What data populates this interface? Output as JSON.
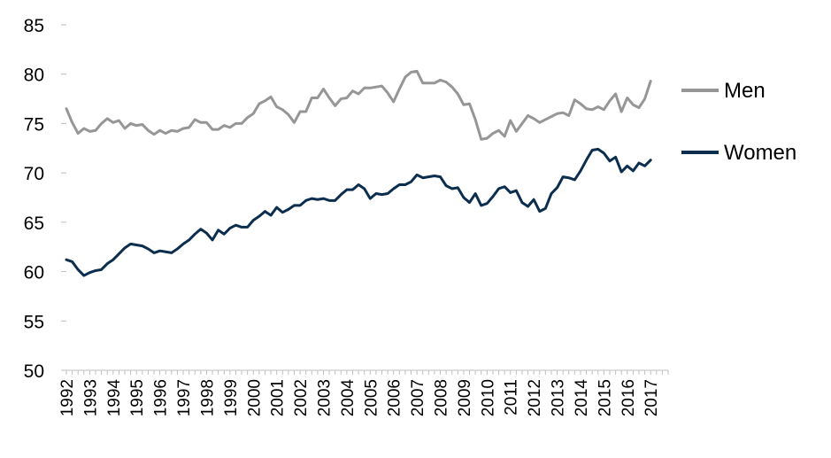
{
  "chart_data": {
    "type": "line",
    "title": "",
    "xlabel": "",
    "ylabel": "",
    "ylim": [
      50,
      85
    ],
    "yticks": [
      50,
      55,
      60,
      65,
      70,
      75,
      80,
      85
    ],
    "xlim": [
      1992.0,
      2017.75
    ],
    "xticks": [
      "1992",
      "1993",
      "1994",
      "1995",
      "1996",
      "1997",
      "1998",
      "1999",
      "2000",
      "2001",
      "2002",
      "2003",
      "2004",
      "2005",
      "2006",
      "2007",
      "2008",
      "2009",
      "2010",
      "2011",
      "2012",
      "2013",
      "2014",
      "2015",
      "2016",
      "2017"
    ],
    "grid": false,
    "legend": "right",
    "x_start": "1992-Q1",
    "frequency": "quarterly",
    "series": [
      {
        "name": "Men",
        "color": "#969696",
        "values": [
          76.5,
          75.1,
          74.0,
          74.5,
          74.2,
          74.3,
          75.0,
          75.5,
          75.1,
          75.3,
          74.5,
          75.0,
          74.8,
          74.9,
          74.3,
          73.9,
          74.3,
          74.0,
          74.3,
          74.2,
          74.5,
          74.6,
          75.4,
          75.1,
          75.1,
          74.4,
          74.4,
          74.8,
          74.6,
          75.0,
          75.0,
          75.6,
          76.0,
          77.0,
          77.3,
          77.7,
          76.7,
          76.4,
          75.9,
          75.1,
          76.2,
          76.2,
          77.6,
          77.6,
          78.5,
          77.6,
          76.8,
          77.5,
          77.6,
          78.3,
          78.0,
          78.6,
          78.6,
          78.7,
          78.8,
          78.1,
          77.2,
          78.5,
          79.7,
          80.2,
          80.3,
          79.1,
          79.1,
          79.1,
          79.4,
          79.2,
          78.7,
          78.0,
          76.9,
          77.0,
          75.4,
          73.4,
          73.5,
          74.0,
          74.3,
          73.7,
          75.3,
          74.2,
          75.0,
          75.8,
          75.5,
          75.1,
          75.4,
          75.7,
          76.0,
          76.1,
          75.8,
          77.4,
          77.0,
          76.5,
          76.4,
          76.7,
          76.4,
          77.3,
          78.0,
          76.2,
          77.6,
          76.9,
          76.6,
          77.5,
          79.3
        ]
      },
      {
        "name": "Women",
        "color": "#0b2e4f",
        "values": [
          61.2,
          61.0,
          60.2,
          59.6,
          59.9,
          60.1,
          60.2,
          60.8,
          61.2,
          61.8,
          62.4,
          62.8,
          62.7,
          62.6,
          62.3,
          61.9,
          62.1,
          62.0,
          61.9,
          62.3,
          62.8,
          63.2,
          63.8,
          64.3,
          63.9,
          63.2,
          64.2,
          63.8,
          64.4,
          64.7,
          64.5,
          64.5,
          65.2,
          65.6,
          66.1,
          65.7,
          66.5,
          66.0,
          66.3,
          66.7,
          66.7,
          67.2,
          67.4,
          67.3,
          67.4,
          67.2,
          67.2,
          67.8,
          68.3,
          68.3,
          68.8,
          68.4,
          67.4,
          67.9,
          67.8,
          67.9,
          68.4,
          68.8,
          68.8,
          69.1,
          69.8,
          69.5,
          69.6,
          69.7,
          69.6,
          68.7,
          68.4,
          68.5,
          67.5,
          67.0,
          67.9,
          66.7,
          66.9,
          67.6,
          68.4,
          68.6,
          68.0,
          68.2,
          67.0,
          66.6,
          67.3,
          66.1,
          66.4,
          67.9,
          68.5,
          69.6,
          69.5,
          69.3,
          70.2,
          71.3,
          72.3,
          72.4,
          72.0,
          71.2,
          71.6,
          70.1,
          70.7,
          70.2,
          71.0,
          70.7,
          71.3
        ]
      }
    ]
  }
}
